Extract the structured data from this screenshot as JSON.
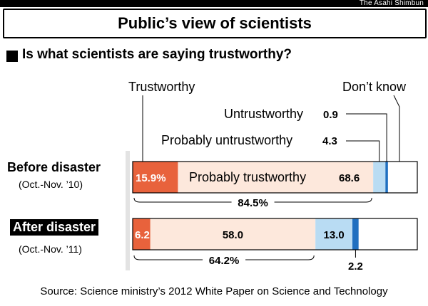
{
  "publisher": "The Asahi Shimbun",
  "title": "Public’s view of scientists",
  "question": "Is what scientists are saying trustworthy?",
  "source": "Source: Science ministry’s 2012 White Paper on Science and Technology",
  "rows": [
    {
      "label": "Before disaster",
      "period": "(Oct.-Nov. ’10)"
    },
    {
      "label": "After disaster",
      "period": "(Oct.-Nov. ’11)"
    }
  ],
  "legend_labels": {
    "trustworthy": "Trustworthy",
    "dont_know": "Don’t know",
    "untrustworthy": "Untrustworthy",
    "probably_untrustworthy": "Probably untrustworthy",
    "probably_trustworthy": "Probably trustworthy"
  },
  "chart_data": {
    "type": "bar",
    "orientation": "horizontal",
    "stacked": true,
    "categories": [
      "Before disaster",
      "After disaster"
    ],
    "series": [
      {
        "name": "Trustworthy",
        "values": [
          15.9,
          6.2
        ],
        "labels": [
          "15.9%",
          "6.2"
        ],
        "color": "#e8623c"
      },
      {
        "name": "Probably trustworthy",
        "values": [
          68.6,
          58.0
        ],
        "labels": [
          "68.6",
          "58.0"
        ],
        "color": "#fde8dc"
      },
      {
        "name": "Probably untrustworthy",
        "values": [
          4.3,
          13.0
        ],
        "labels": [
          "4.3",
          "13.0"
        ],
        "color": "#b9dcf3"
      },
      {
        "name": "Untrustworthy",
        "values": [
          0.9,
          2.2
        ],
        "labels": [
          "0.9",
          "2.2"
        ],
        "color": "#1f6fc0"
      },
      {
        "name": "Don’t know",
        "values": [
          10.3,
          20.6
        ],
        "labels": [
          "",
          ""
        ],
        "color": "#ffffff"
      }
    ],
    "totals": [
      {
        "value": 84.5,
        "label": "84.5%"
      },
      {
        "value": 64.2,
        "label": "64.2%"
      }
    ],
    "xlim": [
      0,
      100
    ]
  }
}
